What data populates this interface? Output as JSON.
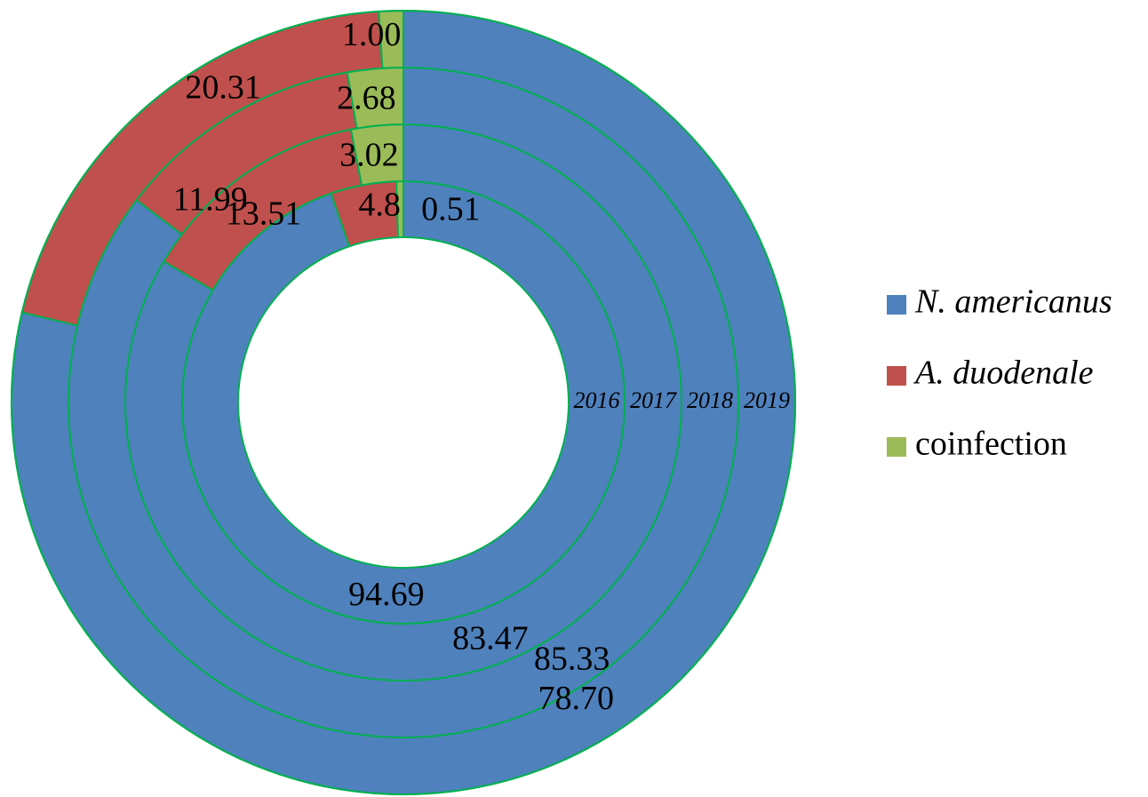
{
  "chart_data": {
    "type": "doughnut",
    "title": "",
    "legend": {
      "position": "right"
    },
    "categories": [
      "N. americanus",
      "A. duodenale",
      "coinfection"
    ],
    "category_colors": [
      "#4f81bd",
      "#c0504d",
      "#9bbb59"
    ],
    "ring_border_color": "#00b050",
    "series": [
      {
        "name": "2016",
        "values": [
          94.69,
          4.8,
          0.51
        ],
        "labels": [
          "94.69",
          "4.8",
          "0.51"
        ]
      },
      {
        "name": "2017",
        "values": [
          83.47,
          13.51,
          3.02
        ],
        "labels": [
          "83.47",
          "13.51",
          "3.02"
        ]
      },
      {
        "name": "2018",
        "values": [
          85.33,
          11.99,
          2.68
        ],
        "labels": [
          "85.33",
          "11.99",
          "2.68"
        ]
      },
      {
        "name": "2019",
        "values": [
          78.7,
          20.31,
          1.0
        ],
        "labels": [
          "78.70",
          "20.31",
          "1.00"
        ]
      }
    ]
  }
}
